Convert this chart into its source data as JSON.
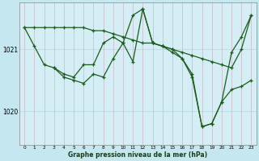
{
  "title": "Graphe pression niveau de la mer (hPa)",
  "bg_color": "#c5e8f0",
  "plot_bg_color": "#d5eef5",
  "line_color": "#1a5c1a",
  "grid_color": "#b0d8e0",
  "xlim": [
    -0.5,
    23.5
  ],
  "ylim": [
    1019.45,
    1021.75
  ],
  "yticks": [
    1020,
    1021
  ],
  "series1_x": [
    0,
    1,
    2,
    3,
    4,
    5,
    6,
    7,
    8,
    9,
    10,
    11,
    12,
    13,
    14,
    15,
    16,
    17,
    18,
    19,
    20,
    21,
    22,
    23
  ],
  "series1_y": [
    1021.35,
    1021.35,
    1021.35,
    1021.35,
    1021.35,
    1021.35,
    1021.35,
    1021.3,
    1021.3,
    1021.25,
    1021.2,
    1021.15,
    1021.1,
    1021.1,
    1021.05,
    1021.0,
    1020.95,
    1020.9,
    1020.85,
    1020.8,
    1020.75,
    1020.7,
    1021.0,
    1021.55
  ],
  "series2_x": [
    0,
    1,
    2,
    3,
    4,
    5,
    6,
    7,
    8,
    9,
    10,
    11,
    12,
    13,
    14,
    15,
    16,
    17,
    18,
    19,
    20,
    21,
    22,
    23
  ],
  "series2_y": [
    1021.35,
    1021.05,
    1020.75,
    1020.7,
    1020.6,
    1020.55,
    1020.75,
    1020.75,
    1021.1,
    1021.2,
    1021.1,
    1021.55,
    1021.65,
    1021.1,
    1021.05,
    1020.95,
    1020.85,
    1020.6,
    1019.75,
    1019.8,
    1020.15,
    1020.95,
    1021.2,
    1021.55
  ],
  "series3_x": [
    3,
    4,
    5,
    6,
    7,
    8,
    9,
    10,
    11,
    12,
    13,
    14,
    15,
    16,
    17,
    18,
    19,
    20,
    21,
    22,
    23
  ],
  "series3_y": [
    1020.7,
    1020.55,
    1020.5,
    1020.45,
    1020.6,
    1020.55,
    1020.85,
    1021.1,
    1020.8,
    1021.65,
    1021.1,
    1021.05,
    1021.0,
    1020.85,
    1020.55,
    1019.75,
    1019.8,
    1020.15,
    1020.35,
    1020.4,
    1020.5
  ]
}
